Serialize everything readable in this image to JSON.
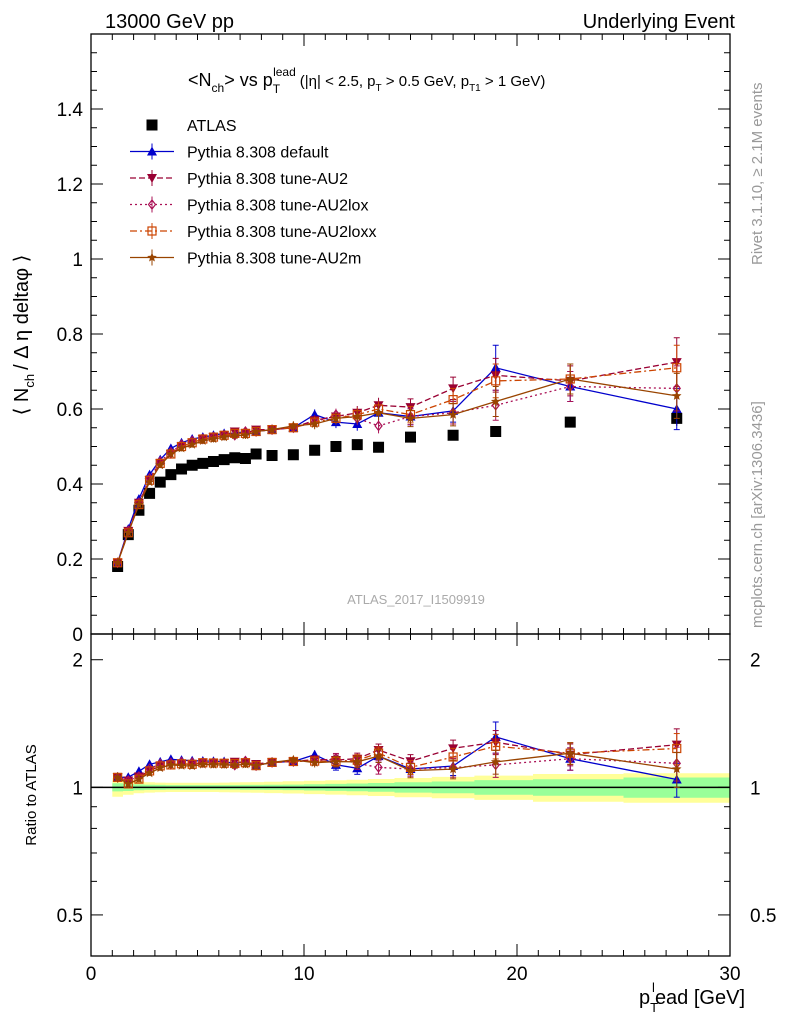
{
  "header": {
    "energy_label": "13000 GeV pp",
    "process_label": "Underlying Event"
  },
  "side_labels": {
    "rivet": "Rivet 3.1.10, ≥ 2.1M events",
    "mcplots": "mcplots.cern.ch [arXiv:1306.3436]"
  },
  "watermark": "ATLAS_2017_I1509919",
  "chart_data": [
    {
      "type": "scatter",
      "panel": "main",
      "title": "<N_ch> vs p_T^lead (|η| < 2.5, p_T > 0.5 GeV, p_T1 > 1 GeV)",
      "title_parts": {
        "main": "<N",
        "main_sub": "ch",
        "vs": "> vs p",
        "p_sub": "T",
        "p_sup": "lead",
        "cuts_a": "(|η| < 2.5, p",
        "cuts_a_sub": "T",
        "cuts_b": " > 0.5 GeV, p",
        "cuts_b_sub": "T1",
        "cuts_c": " > 1 GeV)"
      },
      "ylabel": "⟨ N_ch / Δ η deltaφ ⟩",
      "ylabel_parts": {
        "a": "⟨ N",
        "sub": "ch",
        "b": "/ Δ η deltaφ ⟩"
      },
      "xlim": [
        0,
        30
      ],
      "ylim": [
        0,
        1.6
      ],
      "yticks": [
        "0",
        "0.2",
        "0.4",
        "0.6",
        "0.8",
        "1",
        "1.2",
        "1.4"
      ],
      "ytick_values": [
        0,
        0.2,
        0.4,
        0.6,
        0.8,
        1.0,
        1.2,
        1.4
      ],
      "legend_position": "top-left",
      "x": [
        1.25,
        1.75,
        2.25,
        2.75,
        3.25,
        3.75,
        4.25,
        4.75,
        5.25,
        5.75,
        6.25,
        6.75,
        7.25,
        7.75,
        8.5,
        9.5,
        10.5,
        11.5,
        12.5,
        13.5,
        15,
        17,
        19,
        22.5,
        27.5
      ],
      "series": [
        {
          "name": "ATLAS",
          "color": "#000000",
          "marker": "square-filled",
          "line": "none",
          "values": [
            0.18,
            0.265,
            0.33,
            0.375,
            0.405,
            0.425,
            0.44,
            0.45,
            0.455,
            0.46,
            0.465,
            0.47,
            0.468,
            0.48,
            0.476,
            0.478,
            0.49,
            0.5,
            0.505,
            0.498,
            0.525,
            0.53,
            0.54,
            0.565,
            0.575
          ],
          "errors": [
            0.004,
            0.004,
            0.004,
            0.004,
            0.004,
            0.004,
            0.004,
            0.004,
            0.004,
            0.004,
            0.004,
            0.004,
            0.004,
            0.004,
            0.004,
            0.004,
            0.004,
            0.004,
            0.005,
            0.005,
            0.006,
            0.007,
            0.008,
            0.01,
            0.02
          ]
        },
        {
          "name": "Pythia 8.308 default",
          "color": "#0000cc",
          "marker": "triangle-up-filled",
          "line": "solid",
          "values": [
            0.19,
            0.28,
            0.36,
            0.425,
            0.465,
            0.495,
            0.51,
            0.52,
            0.525,
            0.53,
            0.535,
            0.535,
            0.54,
            0.54,
            0.545,
            0.55,
            0.585,
            0.565,
            0.56,
            0.59,
            0.58,
            0.595,
            0.71,
            0.66,
            0.6
          ],
          "errors": [
            0.005,
            0.005,
            0.006,
            0.006,
            0.007,
            0.007,
            0.008,
            0.008,
            0.008,
            0.009,
            0.009,
            0.01,
            0.01,
            0.01,
            0.01,
            0.012,
            0.014,
            0.016,
            0.018,
            0.02,
            0.022,
            0.03,
            0.06,
            0.04,
            0.055
          ]
        },
        {
          "name": "Pythia 8.308 tune-AU2",
          "color": "#990033",
          "marker": "triangle-down-filled",
          "line": "dashed",
          "values": [
            0.19,
            0.275,
            0.35,
            0.41,
            0.455,
            0.48,
            0.5,
            0.51,
            0.52,
            0.525,
            0.53,
            0.54,
            0.535,
            0.545,
            0.545,
            0.55,
            0.57,
            0.58,
            0.59,
            0.61,
            0.605,
            0.655,
            0.69,
            0.675,
            0.725
          ],
          "errors": [
            0.005,
            0.005,
            0.006,
            0.006,
            0.007,
            0.007,
            0.008,
            0.008,
            0.008,
            0.009,
            0.009,
            0.01,
            0.01,
            0.01,
            0.01,
            0.012,
            0.014,
            0.016,
            0.018,
            0.02,
            0.022,
            0.03,
            0.045,
            0.04,
            0.065
          ]
        },
        {
          "name": "Pythia 8.308 tune-AU2lox",
          "color": "#aa1155",
          "marker": "diamond-open",
          "line": "dotted",
          "values": [
            0.19,
            0.275,
            0.35,
            0.415,
            0.46,
            0.485,
            0.505,
            0.515,
            0.52,
            0.525,
            0.53,
            0.53,
            0.54,
            0.54,
            0.545,
            0.55,
            0.565,
            0.585,
            0.575,
            0.555,
            0.58,
            0.59,
            0.61,
            0.66,
            0.655
          ],
          "errors": [
            0.005,
            0.005,
            0.006,
            0.006,
            0.007,
            0.007,
            0.008,
            0.008,
            0.008,
            0.009,
            0.009,
            0.01,
            0.01,
            0.01,
            0.01,
            0.012,
            0.014,
            0.016,
            0.018,
            0.02,
            0.022,
            0.03,
            0.04,
            0.04,
            0.06
          ]
        },
        {
          "name": "Pythia 8.308 tune-AU2loxx",
          "color": "#cc4400",
          "marker": "square-open",
          "line": "dashdot",
          "values": [
            0.19,
            0.27,
            0.345,
            0.41,
            0.455,
            0.48,
            0.5,
            0.51,
            0.52,
            0.525,
            0.53,
            0.535,
            0.535,
            0.54,
            0.545,
            0.55,
            0.565,
            0.575,
            0.585,
            0.6,
            0.585,
            0.625,
            0.675,
            0.68,
            0.71
          ],
          "errors": [
            0.005,
            0.005,
            0.006,
            0.006,
            0.007,
            0.007,
            0.008,
            0.008,
            0.008,
            0.009,
            0.009,
            0.01,
            0.01,
            0.01,
            0.01,
            0.012,
            0.014,
            0.016,
            0.018,
            0.02,
            0.022,
            0.03,
            0.045,
            0.04,
            0.06
          ]
        },
        {
          "name": "Pythia 8.308 tune-AU2m",
          "color": "#994400",
          "marker": "star-filled",
          "line": "solid",
          "values": [
            0.19,
            0.27,
            0.345,
            0.405,
            0.45,
            0.48,
            0.495,
            0.505,
            0.515,
            0.52,
            0.525,
            0.53,
            0.53,
            0.54,
            0.545,
            0.555,
            0.56,
            0.575,
            0.58,
            0.59,
            0.575,
            0.585,
            0.62,
            0.68,
            0.635
          ],
          "errors": [
            0.005,
            0.005,
            0.006,
            0.006,
            0.007,
            0.007,
            0.008,
            0.008,
            0.008,
            0.009,
            0.009,
            0.01,
            0.01,
            0.01,
            0.01,
            0.012,
            0.014,
            0.016,
            0.018,
            0.02,
            0.022,
            0.03,
            0.04,
            0.04,
            0.06
          ]
        }
      ]
    },
    {
      "type": "scatter",
      "panel": "ratio",
      "ylabel": "Ratio to ATLAS",
      "xlabel": "p_T^lead [GeV]",
      "xlabel_parts": {
        "a": "p",
        "sub": "T",
        "sup": "l",
        "b": "ead [GeV]"
      },
      "xlim": [
        0,
        30
      ],
      "ylim": [
        0.4,
        2.3
      ],
      "ylog": true,
      "xticks": [
        "0",
        "10",
        "20",
        "30"
      ],
      "xtick_values": [
        0,
        10,
        20,
        30
      ],
      "yticks": [
        "0.5",
        "1",
        "2"
      ],
      "ytick_values": [
        0.5,
        1,
        2
      ],
      "reference_line": 1,
      "band_inner": [
        0.022,
        0.02,
        0.016,
        0.014,
        0.013,
        0.012,
        0.012,
        0.012,
        0.012,
        0.012,
        0.012,
        0.012,
        0.013,
        0.013,
        0.014,
        0.015,
        0.017,
        0.019,
        0.021,
        0.024,
        0.028,
        0.032,
        0.04,
        0.045,
        0.055
      ],
      "band_outer": [
        0.05,
        0.04,
        0.032,
        0.028,
        0.026,
        0.025,
        0.025,
        0.025,
        0.025,
        0.025,
        0.026,
        0.027,
        0.028,
        0.029,
        0.031,
        0.033,
        0.036,
        0.039,
        0.042,
        0.046,
        0.052,
        0.058,
        0.066,
        0.075,
        0.08
      ]
    }
  ]
}
